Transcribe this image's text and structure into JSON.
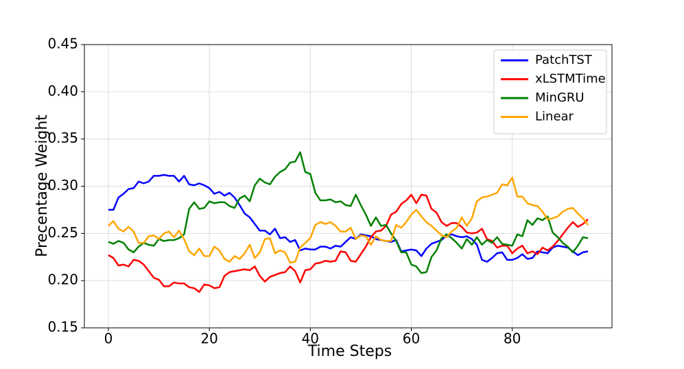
{
  "chart_data": {
    "type": "line",
    "xlabel": "Time Steps",
    "ylabel": "Precentage Weight",
    "x": [
      0,
      1,
      2,
      3,
      4,
      5,
      6,
      7,
      8,
      9,
      10,
      11,
      12,
      13,
      14,
      15,
      16,
      17,
      18,
      19,
      20,
      21,
      22,
      23,
      24,
      25,
      26,
      27,
      28,
      29,
      30,
      31,
      32,
      33,
      34,
      35,
      36,
      37,
      38,
      39,
      40,
      41,
      42,
      43,
      44,
      45,
      46,
      47,
      48,
      49,
      50,
      51,
      52,
      53,
      54,
      55,
      56,
      57,
      58,
      59,
      60,
      61,
      62,
      63,
      64,
      65,
      66,
      67,
      68,
      69,
      70,
      71,
      72,
      73,
      74,
      75,
      76,
      77,
      78,
      79,
      80,
      81,
      82,
      83,
      84,
      85,
      86,
      87,
      88,
      89,
      90,
      91,
      92,
      93,
      94,
      95
    ],
    "series": [
      {
        "name": "PatchTST",
        "color": "#0000ff",
        "values": [
          0.275,
          0.275,
          0.288,
          0.292,
          0.297,
          0.298,
          0.305,
          0.303,
          0.305,
          0.311,
          0.311,
          0.312,
          0.311,
          0.311,
          0.305,
          0.311,
          0.302,
          0.301,
          0.303,
          0.301,
          0.298,
          0.292,
          0.294,
          0.29,
          0.293,
          0.288,
          0.28,
          0.271,
          0.267,
          0.26,
          0.253,
          0.253,
          0.249,
          0.255,
          0.245,
          0.246,
          0.241,
          0.243,
          0.232,
          0.234,
          0.233,
          0.233,
          0.236,
          0.236,
          0.234,
          0.237,
          0.236,
          0.241,
          0.246,
          0.244,
          0.249,
          0.248,
          0.247,
          0.244,
          0.243,
          0.242,
          0.241,
          0.243,
          0.231,
          0.232,
          0.233,
          0.232,
          0.226,
          0.234,
          0.239,
          0.241,
          0.243,
          0.248,
          0.249,
          0.247,
          0.246,
          0.247,
          0.244,
          0.238,
          0.222,
          0.22,
          0.224,
          0.229,
          0.23,
          0.222,
          0.222,
          0.224,
          0.228,
          0.223,
          0.224,
          0.231,
          0.23,
          0.229,
          0.235,
          0.237,
          0.236,
          0.235,
          0.231,
          0.227,
          0.23,
          0.231
        ]
      },
      {
        "name": "xLSTMTime",
        "color": "#ff0000",
        "values": [
          0.227,
          0.224,
          0.216,
          0.217,
          0.215,
          0.222,
          0.221,
          0.217,
          0.21,
          0.203,
          0.201,
          0.194,
          0.194,
          0.198,
          0.197,
          0.197,
          0.193,
          0.192,
          0.188,
          0.196,
          0.195,
          0.192,
          0.193,
          0.205,
          0.209,
          0.21,
          0.211,
          0.212,
          0.211,
          0.215,
          0.205,
          0.199,
          0.204,
          0.206,
          0.208,
          0.209,
          0.215,
          0.21,
          0.198,
          0.211,
          0.212,
          0.218,
          0.219,
          0.221,
          0.22,
          0.221,
          0.231,
          0.23,
          0.221,
          0.22,
          0.228,
          0.236,
          0.246,
          0.252,
          0.253,
          0.258,
          0.27,
          0.273,
          0.281,
          0.285,
          0.291,
          0.282,
          0.291,
          0.29,
          0.276,
          0.272,
          0.262,
          0.258,
          0.261,
          0.261,
          0.257,
          0.251,
          0.25,
          0.251,
          0.255,
          0.244,
          0.242,
          0.235,
          0.237,
          0.237,
          0.229,
          0.234,
          0.237,
          0.229,
          0.231,
          0.228,
          0.235,
          0.232,
          0.236,
          0.242,
          0.249,
          0.256,
          0.262,
          0.257,
          0.26,
          0.265
        ]
      },
      {
        "name": "MinGRU",
        "color": "#008000",
        "values": [
          0.241,
          0.239,
          0.242,
          0.24,
          0.233,
          0.23,
          0.236,
          0.24,
          0.238,
          0.237,
          0.244,
          0.242,
          0.243,
          0.243,
          0.245,
          0.249,
          0.276,
          0.283,
          0.276,
          0.277,
          0.284,
          0.282,
          0.283,
          0.283,
          0.279,
          0.277,
          0.287,
          0.29,
          0.284,
          0.301,
          0.308,
          0.304,
          0.302,
          0.31,
          0.315,
          0.318,
          0.325,
          0.326,
          0.336,
          0.315,
          0.313,
          0.293,
          0.285,
          0.285,
          0.286,
          0.283,
          0.284,
          0.28,
          0.279,
          0.291,
          0.28,
          0.27,
          0.258,
          0.267,
          0.258,
          0.259,
          0.25,
          0.242,
          0.23,
          0.23,
          0.217,
          0.215,
          0.208,
          0.209,
          0.225,
          0.232,
          0.245,
          0.249,
          0.245,
          0.24,
          0.234,
          0.244,
          0.238,
          0.246,
          0.238,
          0.243,
          0.24,
          0.246,
          0.239,
          0.238,
          0.237,
          0.249,
          0.247,
          0.264,
          0.259,
          0.266,
          0.264,
          0.268,
          0.251,
          0.246,
          0.24,
          0.236,
          0.23,
          0.237,
          0.246,
          0.245
        ]
      },
      {
        "name": "Linear",
        "color": "#ffa500",
        "values": [
          0.258,
          0.263,
          0.255,
          0.252,
          0.257,
          0.252,
          0.24,
          0.24,
          0.247,
          0.248,
          0.244,
          0.25,
          0.252,
          0.246,
          0.253,
          0.244,
          0.231,
          0.227,
          0.234,
          0.226,
          0.226,
          0.236,
          0.232,
          0.223,
          0.22,
          0.226,
          0.223,
          0.229,
          0.238,
          0.224,
          0.23,
          0.244,
          0.245,
          0.229,
          0.232,
          0.23,
          0.219,
          0.22,
          0.235,
          0.24,
          0.245,
          0.259,
          0.262,
          0.26,
          0.262,
          0.258,
          0.252,
          0.252,
          0.256,
          0.244,
          0.248,
          0.247,
          0.238,
          0.247,
          0.243,
          0.242,
          0.242,
          0.259,
          0.256,
          0.262,
          0.27,
          0.275,
          0.268,
          0.262,
          0.258,
          0.253,
          0.248,
          0.246,
          0.252,
          0.256,
          0.267,
          0.258,
          0.266,
          0.284,
          0.288,
          0.289,
          0.291,
          0.293,
          0.302,
          0.301,
          0.309,
          0.289,
          0.289,
          0.282,
          0.28,
          0.279,
          0.273,
          0.265,
          0.266,
          0.268,
          0.273,
          0.276,
          0.277,
          0.271,
          0.266,
          0.259
        ]
      }
    ],
    "xlim": [
      -4.75,
      99.75
    ],
    "xticks": [
      0,
      20,
      40,
      60,
      80
    ],
    "ylim": [
      0.15,
      0.45
    ],
    "yticks": [
      {
        "value": 0.15,
        "label": "0.15"
      },
      {
        "value": 0.2,
        "label": "0.20"
      },
      {
        "value": 0.25,
        "label": "0.25"
      },
      {
        "value": 0.3,
        "label": "0.30"
      },
      {
        "value": 0.35,
        "label": "0.35"
      },
      {
        "value": 0.4,
        "label": "0.40"
      },
      {
        "value": 0.45,
        "label": "0.45"
      }
    ],
    "grid": true,
    "legend": "upper-right"
  }
}
